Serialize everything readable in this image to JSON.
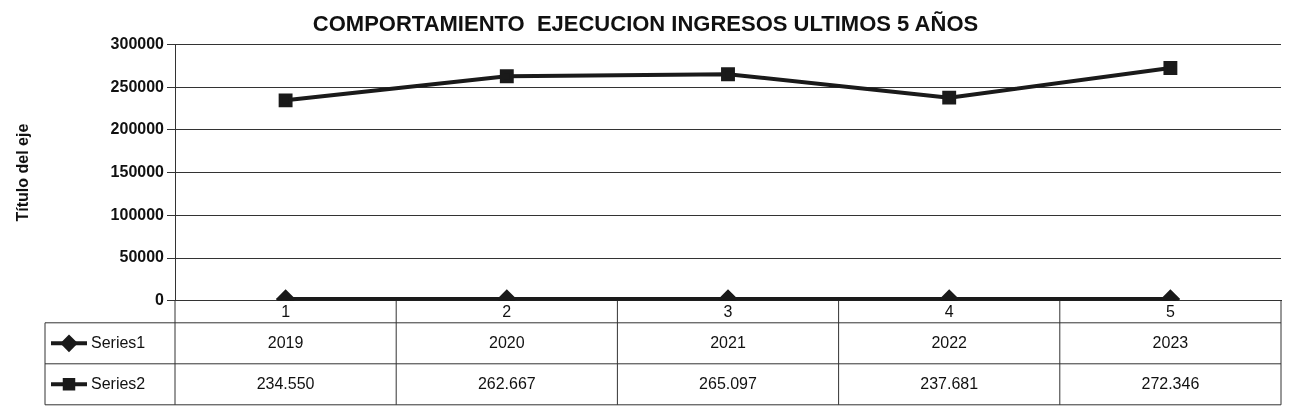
{
  "chart_data": {
    "type": "line",
    "title": "COMPORTAMIENTO  EJECUCION INGRESOS ULTIMOS 5 AÑOS",
    "ylabel": "Título del eje",
    "categories": [
      "1",
      "2",
      "3",
      "4",
      "5"
    ],
    "series": [
      {
        "name": "Series1",
        "color": "#1a1a1a",
        "marker": "diamond",
        "values": [
          2019,
          2020,
          2021,
          2022,
          2023
        ],
        "value_labels": [
          "2019",
          "2020",
          "2021",
          "2022",
          "2023"
        ]
      },
      {
        "name": "Series2",
        "color": "#1a1a1a",
        "marker": "square",
        "values": [
          234550,
          262667,
          265097,
          237681,
          272346
        ],
        "value_labels": [
          "234.550",
          "262.667",
          "265.097",
          "237.681",
          "272.346"
        ]
      }
    ],
    "ylim": [
      0,
      300000
    ],
    "yticks": [
      0,
      50000,
      100000,
      150000,
      200000,
      250000,
      300000
    ],
    "grid": "y",
    "legend": "bottom left"
  }
}
